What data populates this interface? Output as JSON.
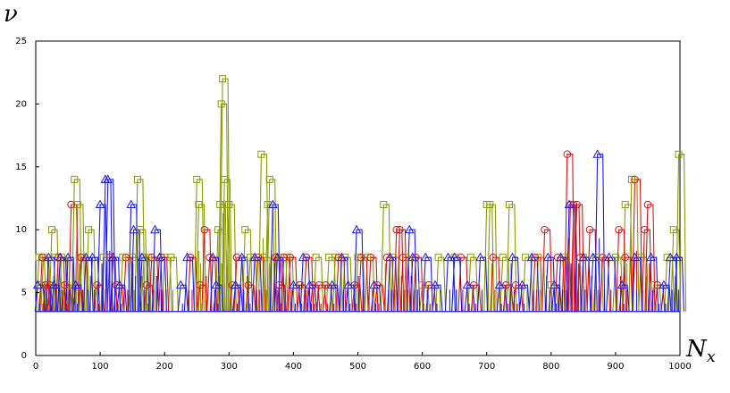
{
  "chart_data": {
    "type": "line",
    "title": "",
    "ylabel": "ν",
    "xlabel_base": "N",
    "xlabel_sub": "x",
    "xlim": [
      0,
      1000
    ],
    "ylim": [
      0,
      25
    ],
    "xticks": [
      0,
      100,
      200,
      300,
      400,
      500,
      600,
      700,
      800,
      900,
      1000
    ],
    "yticks": [
      0,
      5,
      10,
      15,
      20,
      25
    ],
    "grid": false,
    "baseline": 3.5,
    "series": [
      {
        "name": "yellow-green squares",
        "color": "#8a9a00",
        "marker": "square",
        "x": [
          5,
          8,
          12,
          18,
          25,
          30,
          40,
          48,
          60,
          65,
          72,
          82,
          105,
          135,
          150,
          158,
          162,
          168,
          175,
          200,
          210,
          250,
          253,
          283,
          286,
          288,
          290,
          293,
          300,
          325,
          333,
          350,
          355,
          360,
          363,
          380,
          390,
          410,
          435,
          455,
          465,
          480,
          500,
          515,
          540,
          555,
          575,
          600,
          625,
          650,
          675,
          700,
          705,
          725,
          735,
          760,
          780,
          800,
          820,
          850,
          870,
          900,
          915,
          925,
          940,
          960,
          980,
          990,
          998
        ],
        "y": [
          7.8,
          5.6,
          7.8,
          5.6,
          10,
          7.8,
          7.8,
          5.6,
          14,
          12,
          7.8,
          10,
          7.8,
          7.8,
          7.8,
          14,
          10,
          7.8,
          7.8,
          7.8,
          7.8,
          14,
          12,
          10,
          12,
          20,
          22,
          14,
          12,
          10,
          7.8,
          16,
          7.8,
          12,
          14,
          7.8,
          7.8,
          5.6,
          7.8,
          7.8,
          7.8,
          7.8,
          7.8,
          7.8,
          12,
          7.8,
          7.8,
          5.6,
          7.8,
          7.8,
          7.8,
          12,
          12,
          7.8,
          12,
          7.8,
          7.8,
          5.6,
          7.8,
          7.8,
          7.8,
          7.8,
          12,
          14,
          7.8,
          5.6,
          7.8,
          10,
          16
        ]
      },
      {
        "name": "red circles",
        "color": "#dd1111",
        "marker": "circle",
        "x": [
          10,
          15,
          22,
          35,
          45,
          55,
          70,
          95,
          115,
          125,
          140,
          172,
          180,
          195,
          240,
          255,
          262,
          270,
          305,
          312,
          330,
          345,
          372,
          378,
          385,
          395,
          410,
          420,
          430,
          440,
          450,
          470,
          495,
          505,
          520,
          530,
          545,
          560,
          565,
          570,
          590,
          610,
          660,
          680,
          710,
          730,
          745,
          775,
          790,
          810,
          825,
          830,
          835,
          840,
          845,
          860,
          880,
          905,
          915,
          930,
          945,
          950,
          965
        ],
        "y": [
          7.8,
          5.6,
          5.6,
          7.8,
          5.6,
          12,
          7.8,
          5.6,
          7.8,
          5.6,
          7.8,
          5.6,
          7.8,
          7.8,
          7.8,
          5.6,
          10,
          7.8,
          5.6,
          7.8,
          5.6,
          7.8,
          7.8,
          5.6,
          7.8,
          7.8,
          5.6,
          7.8,
          5.6,
          5.6,
          5.6,
          7.8,
          5.6,
          7.8,
          7.8,
          5.6,
          7.8,
          10,
          10,
          7.8,
          7.8,
          5.6,
          7.8,
          5.6,
          7.8,
          5.6,
          5.6,
          7.8,
          10,
          7.8,
          16,
          12,
          12,
          12,
          7.8,
          10,
          7.8,
          10,
          7.8,
          14,
          10,
          12,
          5.6
        ]
      },
      {
        "name": "blue triangles",
        "color": "#1a1aee",
        "marker": "triangle",
        "x": [
          3,
          20,
          28,
          38,
          50,
          62,
          78,
          88,
          100,
          108,
          112,
          120,
          130,
          148,
          152,
          165,
          185,
          192,
          225,
          235,
          275,
          280,
          310,
          320,
          340,
          368,
          375,
          400,
          415,
          425,
          460,
          475,
          485,
          498,
          525,
          550,
          580,
          585,
          605,
          620,
          640,
          650,
          670,
          690,
          720,
          740,
          755,
          770,
          795,
          805,
          815,
          828,
          850,
          865,
          872,
          890,
          910,
          930,
          955,
          975,
          985,
          995
        ],
        "y": [
          5.6,
          7.8,
          5.6,
          7.8,
          7.8,
          5.6,
          7.8,
          7.8,
          12,
          14,
          14,
          7.8,
          5.6,
          12,
          10,
          7.8,
          10,
          7.8,
          5.6,
          7.8,
          7.8,
          5.6,
          5.6,
          7.8,
          7.8,
          12,
          7.8,
          5.6,
          7.8,
          5.6,
          5.6,
          7.8,
          5.6,
          10,
          5.6,
          7.8,
          10,
          7.8,
          7.8,
          5.6,
          7.8,
          7.8,
          5.6,
          7.8,
          5.6,
          7.8,
          5.6,
          7.8,
          7.8,
          5.6,
          7.8,
          12,
          7.8,
          7.8,
          16,
          7.8,
          5.6,
          7.8,
          7.8,
          5.6,
          7.8,
          7.8
        ]
      }
    ]
  }
}
